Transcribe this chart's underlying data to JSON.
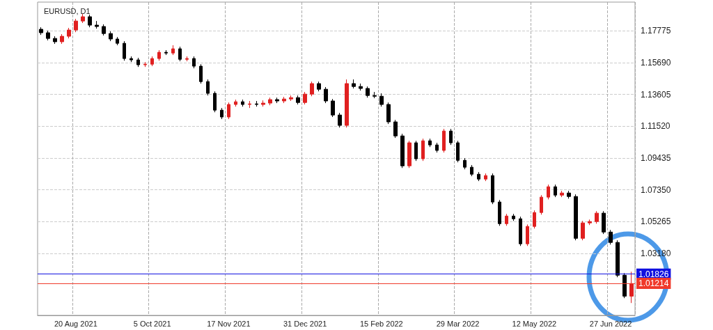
{
  "chart_data": {
    "type": "candlestick",
    "title": "EURUSD, D1",
    "categories": [
      null,
      null,
      null,
      null,
      null,
      "20 Aug 2021",
      null,
      null,
      null,
      null,
      null,
      null,
      null,
      null,
      null,
      null,
      "5 Oct 2021",
      null,
      null,
      null,
      null,
      null,
      null,
      null,
      null,
      null,
      null,
      "17 Nov 2021",
      null,
      null,
      null,
      null,
      null,
      null,
      null,
      null,
      null,
      null,
      "31 Dec 2021",
      null,
      null,
      null,
      null,
      null,
      null,
      null,
      null,
      null,
      null,
      "15 Feb 2022",
      null,
      null,
      null,
      null,
      null,
      null,
      null,
      null,
      null,
      null,
      "29 Mar 2022",
      null,
      null,
      null,
      null,
      null,
      null,
      null,
      null,
      null,
      null,
      "12 May 2022",
      null,
      null,
      null,
      null,
      null,
      null,
      null,
      null,
      null,
      null,
      "27 Jun 2022",
      null,
      null,
      null
    ],
    "ohlc": [
      [
        1.1787,
        1.18,
        1.175,
        1.1764
      ],
      [
        1.1764,
        1.1778,
        1.1714,
        1.1727
      ],
      [
        1.1727,
        1.1741,
        1.1691,
        1.1705
      ],
      [
        1.1705,
        1.1755,
        1.1691,
        1.1741
      ],
      [
        1.1741,
        1.1796,
        1.1727,
        1.1782
      ],
      [
        1.1782,
        1.1855,
        1.1768,
        1.1841
      ],
      [
        1.1841,
        1.1887,
        1.1828,
        1.1869
      ],
      [
        1.1869,
        1.1883,
        1.18,
        1.1814
      ],
      [
        1.1814,
        1.1841,
        1.1791,
        1.1805
      ],
      [
        1.1805,
        1.1819,
        1.1746,
        1.1759
      ],
      [
        1.1759,
        1.1773,
        1.1709,
        1.1723
      ],
      [
        1.1723,
        1.1736,
        1.1682,
        1.1695
      ],
      [
        1.1695,
        1.1709,
        1.1581,
        1.1595
      ],
      [
        1.1595,
        1.1609,
        1.1572,
        1.1586
      ],
      [
        1.1586,
        1.16,
        1.154,
        1.1554
      ],
      [
        1.1554,
        1.1572,
        1.154,
        1.1558
      ],
      [
        1.1558,
        1.1609,
        1.1545,
        1.1595
      ],
      [
        1.1595,
        1.165,
        1.1581,
        1.1636
      ],
      [
        1.1636,
        1.165,
        1.1618,
        1.1631
      ],
      [
        1.1631,
        1.1682,
        1.1618,
        1.1659
      ],
      [
        1.1659,
        1.1673,
        1.1577,
        1.159
      ],
      [
        1.159,
        1.1609,
        1.1577,
        1.1595
      ],
      [
        1.1595,
        1.1609,
        1.1531,
        1.1545
      ],
      [
        1.1545,
        1.1558,
        1.1431,
        1.1444
      ],
      [
        1.1444,
        1.1458,
        1.1353,
        1.1367
      ],
      [
        1.1367,
        1.138,
        1.1243,
        1.1257
      ],
      [
        1.1257,
        1.1271,
        1.1198,
        1.1212
      ],
      [
        1.1212,
        1.1307,
        1.1198,
        1.1294
      ],
      [
        1.1294,
        1.1326,
        1.128,
        1.1312
      ],
      [
        1.1312,
        1.1326,
        1.128,
        1.1294
      ],
      [
        1.1294,
        1.1317,
        1.1271,
        1.1298
      ],
      [
        1.1298,
        1.1317,
        1.128,
        1.1294
      ],
      [
        1.1294,
        1.1321,
        1.128,
        1.1303
      ],
      [
        1.1303,
        1.1339,
        1.1289,
        1.1326
      ],
      [
        1.1326,
        1.1339,
        1.1303,
        1.1317
      ],
      [
        1.1317,
        1.1344,
        1.1303,
        1.133
      ],
      [
        1.133,
        1.1353,
        1.1317,
        1.1339
      ],
      [
        1.1339,
        1.1353,
        1.1294,
        1.1307
      ],
      [
        1.1307,
        1.1376,
        1.1294,
        1.1362
      ],
      [
        1.1362,
        1.1444,
        1.1348,
        1.1431
      ],
      [
        1.1431,
        1.1444,
        1.138,
        1.1394
      ],
      [
        1.1394,
        1.1408,
        1.1303,
        1.1317
      ],
      [
        1.1317,
        1.133,
        1.1212,
        1.1225
      ],
      [
        1.1225,
        1.1239,
        1.1143,
        1.1157
      ],
      [
        1.1157,
        1.1458,
        1.1143,
        1.1431
      ],
      [
        1.1431,
        1.1458,
        1.1399,
        1.1412
      ],
      [
        1.1412,
        1.1431,
        1.1385,
        1.1399
      ],
      [
        1.1399,
        1.1412,
        1.1339,
        1.1353
      ],
      [
        1.1353,
        1.1376,
        1.1335,
        1.1348
      ],
      [
        1.1348,
        1.1367,
        1.128,
        1.1294
      ],
      [
        1.1294,
        1.1307,
        1.1166,
        1.118
      ],
      [
        1.118,
        1.1193,
        1.1075,
        1.1088
      ],
      [
        1.1088,
        1.1102,
        1.0878,
        1.0892
      ],
      [
        1.0892,
        1.1056,
        1.0878,
        1.1043
      ],
      [
        1.1043,
        1.1056,
        1.0924,
        1.0938
      ],
      [
        1.0938,
        1.107,
        1.0924,
        1.1056
      ],
      [
        1.1056,
        1.107,
        1.1015,
        1.1029
      ],
      [
        1.1029,
        1.1043,
        1.0979,
        1.0993
      ],
      [
        1.0993,
        1.1134,
        1.0979,
        1.112
      ],
      [
        1.112,
        1.1134,
        1.1029,
        1.1043
      ],
      [
        1.1043,
        1.1056,
        1.0915,
        1.0928
      ],
      [
        1.0928,
        1.0942,
        1.0869,
        1.0883
      ],
      [
        1.0883,
        1.0897,
        1.0824,
        1.0837
      ],
      [
        1.0837,
        1.0851,
        1.0792,
        1.0805
      ],
      [
        1.0805,
        1.0842,
        1.0792,
        1.0828
      ],
      [
        1.0828,
        1.0842,
        1.0641,
        1.0655
      ],
      [
        1.0655,
        1.0668,
        1.0499,
        1.0513
      ],
      [
        1.0513,
        1.0577,
        1.0499,
        1.0563
      ],
      [
        1.0563,
        1.0577,
        1.0531,
        1.0545
      ],
      [
        1.0545,
        1.0559,
        1.0367,
        1.0381
      ],
      [
        1.0381,
        1.0508,
        1.0367,
        1.0495
      ],
      [
        1.0495,
        1.06,
        1.0481,
        1.0586
      ],
      [
        1.0586,
        1.07,
        1.0572,
        1.0687
      ],
      [
        1.0687,
        1.0769,
        1.0672,
        1.0755
      ],
      [
        1.0755,
        1.0769,
        1.0687,
        1.07
      ],
      [
        1.07,
        1.0728,
        1.0687,
        1.0714
      ],
      [
        1.0714,
        1.0728,
        1.0677,
        1.0691
      ],
      [
        1.0691,
        1.0705,
        1.0404,
        1.0417
      ],
      [
        1.0417,
        1.0531,
        1.0404,
        1.0518
      ],
      [
        1.0518,
        1.054,
        1.0504,
        1.0527
      ],
      [
        1.0527,
        1.0595,
        1.0513,
        1.0582
      ],
      [
        1.0582,
        1.0595,
        1.0445,
        1.0458
      ],
      [
        1.0458,
        1.0472,
        1.0376,
        1.039
      ],
      [
        1.039,
        1.0404,
        1.0162,
        1.0175
      ],
      [
        1.0175,
        1.0189,
        1.0025,
        1.0038
      ],
      [
        1.0038,
        1.0198,
        0.9993,
        1.0121
      ]
    ],
    "colors": [
      "#000000",
      "#000000",
      "#000000",
      "#e02020",
      "#e02020",
      "#e02020",
      "#e02020",
      "#000000",
      "#000000",
      "#000000",
      "#000000",
      "#000000",
      "#000000",
      "#000000",
      "#000000",
      "#e02020",
      "#e02020",
      "#e02020",
      "#000000",
      "#e02020",
      "#000000",
      "#e02020",
      "#000000",
      "#000000",
      "#000000",
      "#000000",
      "#000000",
      "#e02020",
      "#e02020",
      "#000000",
      "#e02020",
      "#000000",
      "#e02020",
      "#e02020",
      "#000000",
      "#e02020",
      "#e02020",
      "#000000",
      "#e02020",
      "#e02020",
      "#000000",
      "#000000",
      "#000000",
      "#000000",
      "#e02020",
      "#000000",
      "#000000",
      "#000000",
      "#000000",
      "#000000",
      "#000000",
      "#000000",
      "#000000",
      "#e02020",
      "#000000",
      "#e02020",
      "#000000",
      "#000000",
      "#e02020",
      "#000000",
      "#000000",
      "#000000",
      "#000000",
      "#000000",
      "#e02020",
      "#000000",
      "#000000",
      "#e02020",
      "#000000",
      "#000000",
      "#e02020",
      "#e02020",
      "#e02020",
      "#e02020",
      "#000000",
      "#e02020",
      "#000000",
      "#000000",
      "#e02020",
      "#e02020",
      "#e02020",
      "#000000",
      "#000000",
      "#000000",
      "#000000",
      "#e02020"
    ],
    "ylim": [
      0.9912,
      1.1965
    ],
    "yticks": [
      {
        "value": 1.0318,
        "label": "1.03180"
      },
      1.05265,
      {
        "value": 1.0735,
        "label": "1.07350"
      },
      1.09435,
      {
        "value": 1.1152,
        "label": "1.11520"
      },
      1.13605,
      {
        "value": 1.1569,
        "label": "1.15690"
      },
      1.17775
    ],
    "ref_lines": [
      {
        "axis": "y",
        "value": 1.01826,
        "label": "1.01826",
        "color": "#1010e0"
      },
      {
        "axis": "y",
        "value": 1.01214,
        "label": "1.01214",
        "color": "#f03a2a"
      }
    ],
    "grid": true
  }
}
